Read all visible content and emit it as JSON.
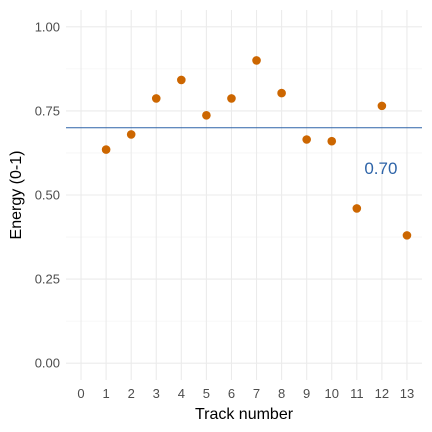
{
  "chart_data": {
    "type": "scatter",
    "title": "",
    "xlabel": "Track number",
    "ylabel": "Energy (0-1)",
    "xlim": [
      -0.6,
      13.6
    ],
    "ylim": [
      -0.05,
      1.05
    ],
    "x_ticks": [
      0,
      1,
      2,
      3,
      4,
      5,
      6,
      7,
      8,
      9,
      10,
      11,
      12,
      13
    ],
    "y_ticks": [
      0,
      0.25,
      0.5,
      0.75,
      1
    ],
    "y_tick_labels": [
      "0.00",
      "0.25",
      "0.50",
      "0.75",
      "1.00"
    ],
    "grid": true,
    "series": [
      {
        "x": [
          1,
          2,
          3,
          4,
          5,
          6,
          7,
          8,
          9,
          10,
          11,
          12,
          13
        ],
        "y": [
          0.635,
          0.68,
          0.787,
          0.842,
          0.737,
          0.787,
          0.9,
          0.803,
          0.665,
          0.66,
          0.46,
          0.765,
          0.38
        ],
        "color": "#CC6600"
      }
    ],
    "reference_line": {
      "y": 0.7,
      "label": "0.70",
      "label_x": 12,
      "label_y": 0.58,
      "color": "#2E64A8"
    }
  }
}
